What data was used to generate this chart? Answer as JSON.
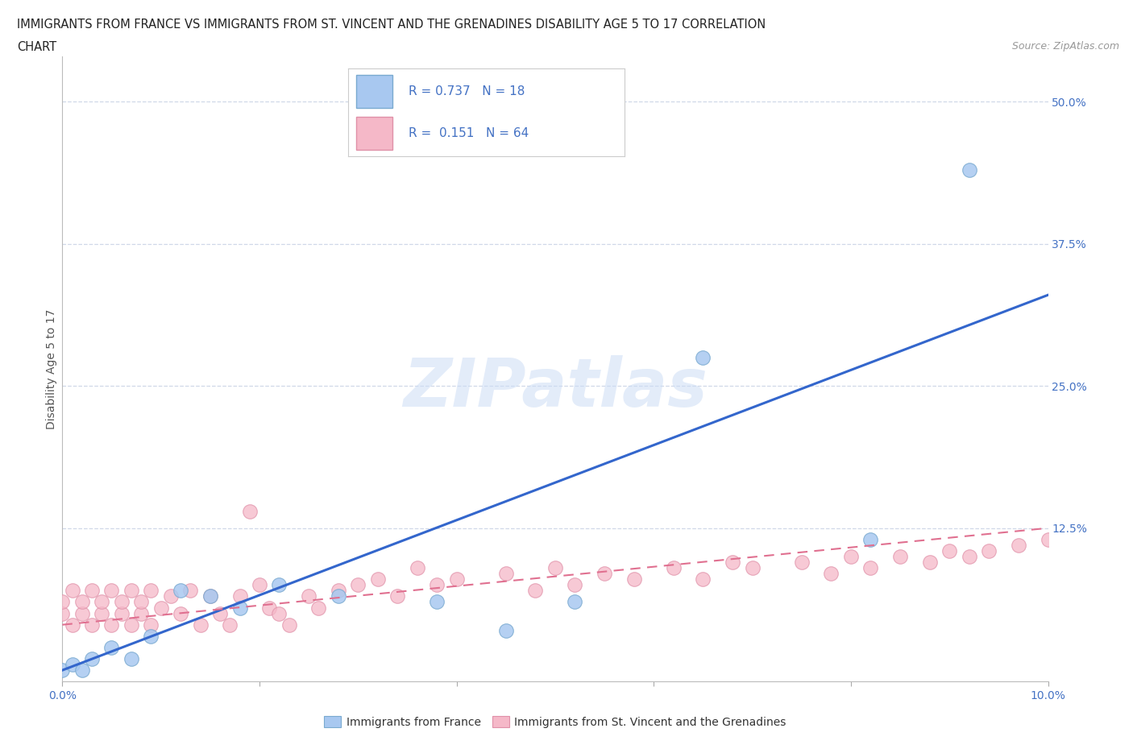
{
  "title_line1": "IMMIGRANTS FROM FRANCE VS IMMIGRANTS FROM ST. VINCENT AND THE GRENADINES DISABILITY AGE 5 TO 17 CORRELATION",
  "title_line2": "CHART",
  "source": "Source: ZipAtlas.com",
  "ylabel": "Disability Age 5 to 17",
  "xlim": [
    0.0,
    0.1
  ],
  "ylim": [
    -0.01,
    0.54
  ],
  "xticks": [
    0.0,
    0.02,
    0.04,
    0.06,
    0.08,
    0.1
  ],
  "xticklabels": [
    "0.0%",
    "",
    "",
    "",
    "",
    "10.0%"
  ],
  "ytick_positions": [
    0.0,
    0.125,
    0.25,
    0.375,
    0.5
  ],
  "ytick_labels": [
    "",
    "12.5%",
    "25.0%",
    "37.5%",
    "50.0%"
  ],
  "watermark": "ZIPatlas",
  "france_color": "#a8c8f0",
  "france_edge": "#7aaad0",
  "svg_color": "#f5b8c8",
  "svg_edge": "#e090a8",
  "france_R": 0.737,
  "france_N": 18,
  "svg_R": 0.151,
  "svg_N": 64,
  "france_scatter_x": [
    0.0,
    0.001,
    0.002,
    0.003,
    0.005,
    0.007,
    0.009,
    0.012,
    0.015,
    0.018,
    0.022,
    0.028,
    0.038,
    0.045,
    0.052,
    0.065,
    0.082,
    0.092
  ],
  "france_scatter_y": [
    0.0,
    0.005,
    0.0,
    0.01,
    0.02,
    0.01,
    0.03,
    0.07,
    0.065,
    0.055,
    0.075,
    0.065,
    0.06,
    0.035,
    0.06,
    0.275,
    0.115,
    0.44
  ],
  "svg_scatter_x": [
    0.0,
    0.0,
    0.001,
    0.001,
    0.002,
    0.002,
    0.003,
    0.003,
    0.004,
    0.004,
    0.005,
    0.005,
    0.006,
    0.006,
    0.007,
    0.007,
    0.008,
    0.008,
    0.009,
    0.009,
    0.01,
    0.011,
    0.012,
    0.013,
    0.014,
    0.015,
    0.016,
    0.017,
    0.018,
    0.019,
    0.02,
    0.021,
    0.022,
    0.023,
    0.025,
    0.026,
    0.028,
    0.03,
    0.032,
    0.034,
    0.036,
    0.038,
    0.04,
    0.045,
    0.048,
    0.05,
    0.052,
    0.055,
    0.058,
    0.062,
    0.065,
    0.068,
    0.07,
    0.075,
    0.078,
    0.08,
    0.082,
    0.085,
    0.088,
    0.09,
    0.092,
    0.094,
    0.097,
    0.1
  ],
  "svg_scatter_y": [
    0.05,
    0.06,
    0.04,
    0.07,
    0.05,
    0.06,
    0.04,
    0.07,
    0.05,
    0.06,
    0.04,
    0.07,
    0.05,
    0.06,
    0.04,
    0.07,
    0.05,
    0.06,
    0.04,
    0.07,
    0.055,
    0.065,
    0.05,
    0.07,
    0.04,
    0.065,
    0.05,
    0.04,
    0.065,
    0.14,
    0.075,
    0.055,
    0.05,
    0.04,
    0.065,
    0.055,
    0.07,
    0.075,
    0.08,
    0.065,
    0.09,
    0.075,
    0.08,
    0.085,
    0.07,
    0.09,
    0.075,
    0.085,
    0.08,
    0.09,
    0.08,
    0.095,
    0.09,
    0.095,
    0.085,
    0.1,
    0.09,
    0.1,
    0.095,
    0.105,
    0.1,
    0.105,
    0.11,
    0.115
  ],
  "france_line_x": [
    0.0,
    0.1
  ],
  "france_line_y": [
    0.0,
    0.33
  ],
  "svg_line_x": [
    0.0,
    0.1
  ],
  "svg_line_y": [
    0.04,
    0.125
  ],
  "grid_color": "#d0d8e8",
  "background_color": "#ffffff"
}
